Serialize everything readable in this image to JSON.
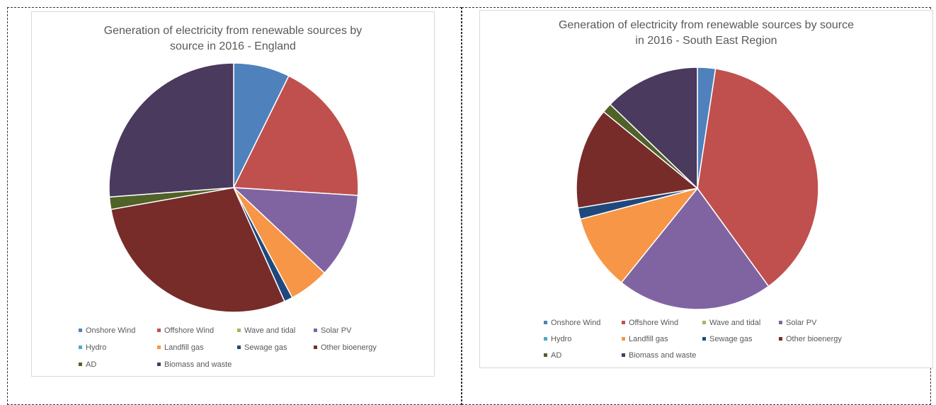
{
  "colors": {
    "Onshore Wind": "#4f81bd",
    "Offshore Wind": "#c0504d",
    "Wave and tidal": "#9bbb59",
    "Solar PV": "#8064a2",
    "Hydro": "#4bacc6",
    "Landfill gas": "#f79646",
    "Sewage gas": "#1f497d",
    "Other bioenergy": "#772c2a",
    "AD": "#4f6228",
    "Biomass and waste": "#4a3a5e"
  },
  "chart_data": [
    {
      "type": "pie",
      "title": "Generation of electricity from renewable sources by\nsource in 2016 - England",
      "categories": [
        "Onshore Wind",
        "Offshore Wind",
        "Wave and tidal",
        "Solar PV",
        "Hydro",
        "Landfill gas",
        "Sewage gas",
        "Other bioenergy",
        "AD",
        "Biomass and waste"
      ],
      "values": [
        7.3,
        18.7,
        0.0,
        11.0,
        0.0,
        5.2,
        1.1,
        28.9,
        1.6,
        26.2
      ],
      "start_angle_deg": 0,
      "legend_position": "bottom"
    },
    {
      "type": "pie",
      "title": "Generation of electricity from renewable sources by source\nin 2016 - South East Region",
      "categories": [
        "Onshore Wind",
        "Offshore Wind",
        "Wave and tidal",
        "Solar PV",
        "Hydro",
        "Landfill gas",
        "Sewage gas",
        "Other bioenergy",
        "AD",
        "Biomass and waste"
      ],
      "values": [
        2.4,
        37.6,
        0.0,
        20.8,
        0.0,
        10.1,
        1.5,
        13.5,
        1.3,
        12.8
      ],
      "start_angle_deg": 0,
      "legend_position": "bottom"
    }
  ]
}
